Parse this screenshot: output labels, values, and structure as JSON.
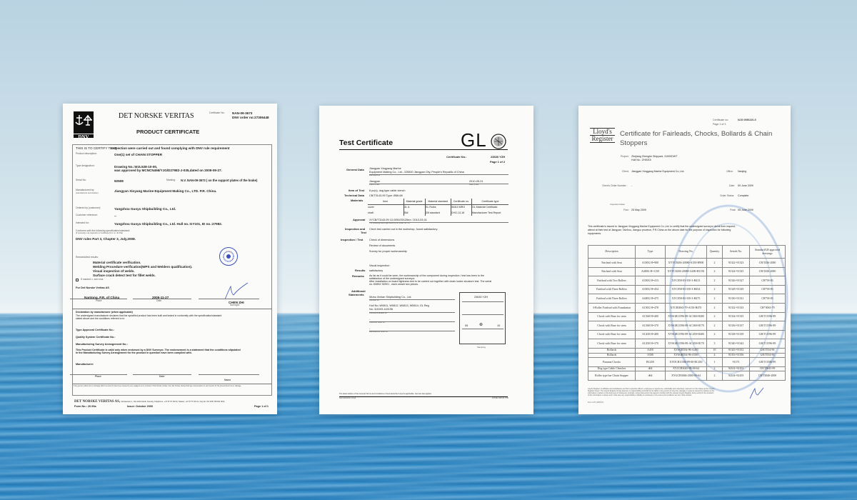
{
  "background": {
    "sky_color": "#cfe1ea",
    "sea_color": "#3f95c9"
  },
  "dnv": {
    "logo_text": "DNV",
    "org": "DET NORSKE VERITAS",
    "cert_label": "Certificate No:",
    "cert_no": "NAN-09-3673",
    "order_no": "DNV order no:27306448",
    "title": "PRODUCT CERTIFICATE",
    "certify_label": "THIS IS TO CERTIFY THAT:",
    "certify_value": "Inspection were carried out and found complying with DNV rule requirement",
    "product_label": "Product description:",
    "product_value": "One(1) set of CHAIN STOPPER",
    "type_label": "Type designation:",
    "type_value_1": "Drawing No.:WJL528-10-00,",
    "type_value_2": "was approved by MCNCN466/YJG/D27982-J-035,dated on 2009-09-27.",
    "serial_label": "Serial No:",
    "serial_value": "92508",
    "marking_label": "Marking:",
    "marking_value": "N.V. NAN-09-3673  ( on the support plates of the brake)",
    "manufactured_label": "Manufactured by:",
    "manufactured_sub": "(manufacturer and location)",
    "manufactured_value": "Jiangyan Xinyang Marine Equipment Making Co., LTD. P.R. China.",
    "ordered_label": "Ordered by (customer):",
    "ordered_value": "Yangzhou Guoyu Shipbuilding Co., Ltd.",
    "customer_ref_label": "Customer reference:",
    "customer_ref_value": "--",
    "intended_label": "Intended for:",
    "intended_value": "Yangzhou Guoyu Shipbuilding Co., Ltd. Hull no.:GY101, ID no.:27982.",
    "conforms_label": "Conforms with the following specification/standard:",
    "conforms_sub": "(if necessary use Appendix to Certificate form no. 40.93a)",
    "conforms_value": "DNV rules Part 3, Chapter 3, July,2008.",
    "remarks_label": "Remarks/test results:",
    "remarks": [
      "Material certificate verification.",
      "Welding Procedure verification(WPS and Welders qualification).",
      "Visual inspection of welds.",
      "Surface crack detect test for fillet welds."
    ],
    "if_marked": "If marked x, see encl.",
    "for_dnv": "For Det Norske Veritas AS",
    "place_value": "Nantong, P.R. of China",
    "place_label": "Place",
    "date_value": "2009-11-27",
    "date_label": "Date",
    "surveyor_name": "CHEN ZHI",
    "surveyor_label": "Surveyor",
    "seal_text": "DET NORSKE VERITAS 1864 SHANGHAI",
    "decl_title": "Declaration by manufacturer (when applicable)",
    "decl_text_1": "The undersigned manufacturer declares that the specified product has been built and tested in conformity with the specification/standard",
    "decl_text_2": "stated above and the conditions referred to in:",
    "type_approval": "Type Approval Certificate No.:",
    "quality_system": "Quality System Certificate No.:",
    "manufacturing_survey": "Manufacturing Survey Arrangement No.:",
    "validity_1": "This Product Certificate is valid only when endorsed by a DNV Surveyor. The endorsement is a statement that the conditions stipulated",
    "validity_2": "in the Manufacturing Survey Arrangement for the product in question have been complied with.",
    "manufacturer_label": "Manufacturer:",
    "place2": "Place",
    "date2": "Date",
    "name2": "Name",
    "footnote": "If any person suffers loss or damage which is proved to have been caused by any negligent act or omission of Det Norske Veritas, then Det Norske Veritas shall pay compensation to such person for his proved direct loss or damage.",
    "footer_org": "DET NORSKE VERITAS AS,",
    "footer_address": "Veritasveien 1, NO-1322 Høvik, Norway, Telephone: +47 67 57 99 00, Telefax: +47 67 57 99 11, Org.No. NO 945 748 931 MVA",
    "form_no": "Form No.: 20.93a",
    "issue": "Issue: October 2000",
    "page": "Page 1 of 1"
  },
  "gl": {
    "title": "Test Certificate",
    "logo": "GL",
    "cert_label": "Certificate No.:",
    "cert_no": "23630 YZH",
    "page": "Page 1 of 2",
    "general_label": "General Data",
    "general_1": "Jiangyan Xingyang Marine",
    "general_2": "Equipment Making Co., Ltd., 225500 Jiangyan City, People's Republic of China",
    "manufacturer_label": "Manufacturer",
    "place_value": "Jiangyan",
    "place_label": "Place of test",
    "date_value": "2010-05-21",
    "date_label": "Date of test",
    "item_label": "Item of Test",
    "item_value": "8 pc(s). dog type cable clench",
    "tech_label": "Technical Data",
    "tech_value": "CB/T3143-99 Type: Ø66-68",
    "materials_label": "Materials",
    "mat_headers": [
      "Item",
      "Material grade",
      "Material standard",
      "Certificate no.",
      "Certificate type"
    ],
    "mat_rows": [
      [
        "cover",
        "GL A",
        "GL Rules",
        "30410 MRG",
        "GL Material Certificate"
      ],
      [
        "shaft",
        "35#",
        "GB standard",
        "CHG-13-16",
        "Manufacturer Test Report"
      ]
    ],
    "approval_label": "Approval",
    "approval_value": "XYCB/T3143-99 10-0050/20125ez / 2010-03-01",
    "approval_note": "The drawings were approved by GL under ref. no.",
    "insp_test_label_1": "Inspection and",
    "insp_test_label_2": "Test",
    "insp_test_value": "Clech test carried out in the workshop, found satisfactory.",
    "insp_label": "Inspection / Test",
    "insp_items": [
      "Check of dimensions",
      "Review of documents",
      "Survey for proper workmanship",
      "Visual inspection"
    ],
    "results_label": "Results",
    "results_value": "satisfactory",
    "remarks_label": "Remarks",
    "remarks_1": "As far as it could be seen, the workmanship of the component during inspection / test has been to the",
    "remarks_2": "satisfaction of the undersigned surveyor.",
    "remarks_3": "After installation on board tightness test to be carried out together with chain locker structure test. The serial",
    "remarks_4": "no.:50894~50901 , each vessel two pieces.",
    "additional_label_1": "Additional",
    "additional_label_2": "Statements",
    "add_company": "Wuhu Xinlian Shipbuilding Co., Ltd.",
    "intended_label": "Intended for",
    "hull_1": "Hull No.:W0811, W0812, W0813, W0814; GL Reg",
    "hull_2": "No.:115193-115196",
    "continue_label": "Continue intended for",
    "dash1": "-",
    "customer_label": "Customer order no.",
    "dash2": "-",
    "mfr_order_label": "Manufacturer order no.",
    "stamp_no": "23630 YZH",
    "stamp_left": "05",
    "stamp_right": "10",
    "stamping_label": "Stamping",
    "footer_note": "The latest edition of the General Terms and Conditions of Germanischer Lloyd is applicable. German law applies.",
    "footer_org": "Germanischer Lloyd",
    "footer_form": "F/OSE/ 208.06 YFB"
  },
  "lr": {
    "cert_label": "Certificate no:",
    "cert_no": "NJG 0956220-5",
    "page": "Page 1 of 3",
    "logo_1": "Lloyd's",
    "logo_2": "Register",
    "title_1": "Certificate for Fairleads, Chocks, Bollards & Chain",
    "title_2": "Stoppers",
    "project_label": "Project:",
    "project_1": "Zhejiang Zhenghe Shipyard, 31000DWT",
    "project_2": "Hull No.: ZH0015",
    "client_label": "Client:",
    "client_value": "Jiangyan Xinggang Marine Equipment Co.,Ltd.",
    "office_label": "Office:",
    "office_value": "Nanjing",
    "order_label": "Client's Order Number:",
    "order_value": "-",
    "date_label": "Date:",
    "date_value": "09 June 2009",
    "status_label": "Order Status:",
    "status_value": "Complete",
    "insp_dates_label": "Inspection Dates",
    "first_label": "First:",
    "first_value": "25 May 2009",
    "final_label": "Final:",
    "final_value": "05 June 2009",
    "para_1": "This certificate is issued to Jiangyan Xinggang Marine Equipment Co.,Ltd. to certify that the undersigned surveyor did at their request,",
    "para_2": "attend at their test at Jiangyan, Taizhou, Jiangsu province, P.R.China on the above date for the purpose of inspection for following",
    "para_3": "equipments.",
    "headers": [
      "Description",
      "Type",
      "Drawing No.",
      "Quantity",
      "Serials No.",
      "Standard/LR approved drawings"
    ],
    "rows": [
      [
        "Fairlead with Seat",
        "A350G H=900",
        "XYYC8436-20080-A350-H900",
        "2",
        "91322~91323",
        "CB/T436-2000"
      ],
      [
        "Fairlead with Seat",
        "A400G H=1150",
        "XYYC8436-20080-A400-H1150",
        "2",
        "91324~91325",
        "CB/T436-2000"
      ],
      [
        "Fairlead with Two Rollers",
        "A350G H=413",
        "XYC858-83-350-3-H413",
        "2",
        "91326~91327",
        "CB*58-83"
      ],
      [
        "Fairlead with Three Rollers",
        "A350G H=454",
        "XYC858-83-350-3-H454",
        "2",
        "91328~91329",
        "CB*58-83"
      ],
      [
        "Fairlead with Three Rollers",
        "A400G H=475",
        "XYC858-83-350-3-H475",
        "2",
        "91330~91331",
        "CB*58-83"
      ],
      [
        "3-Roller Fairlead with Foundation",
        "A150G H=478",
        "XYCB3063-79-A150-H470",
        "2",
        "91332~91333",
        "CB*3063-79"
      ],
      [
        "Chock with Base for stem",
        "AC360 H=400",
        "XYSGB11596-89-AC360-H400",
        "2",
        "91334~91335",
        "GB/T11596-89"
      ],
      [
        "Chock with Base for stem",
        "AC360 H=370",
        "XYSGB11596-89-AC360-H170",
        "2",
        "91336~91337",
        "GB/T11596-89"
      ],
      [
        "Chock with Base for stem",
        "AC450 H=400",
        "XYSGB11596-89-AC450-H400",
        "2",
        "91338~91339",
        "GB/T11596-89"
      ],
      [
        "Chock with Base for stem",
        "AC450 H=370",
        "XYSGB11596-89-AC450-H170",
        "3",
        "91340~91342",
        "GB/T11596-89"
      ],
      [
        "Bollards",
        "A450",
        "XYSGB554-96-A450",
        "10",
        "91343~91352",
        "GB/T554-96"
      ],
      [
        "Bollards",
        "A500",
        "XYSGB554-96-A500",
        "4",
        "91353~91356",
        "GB/T554-96"
      ],
      [
        "Panama Chocks",
        "BC450",
        "XYDCB11586-89-00-BC450",
        "1",
        "91373",
        "GB/T11586-89"
      ],
      [
        "Dog type Cable Clenches",
        "d64",
        "XYCCB3045-99-00-64",
        "2",
        "92102~92103",
        "CB/T3045-99"
      ],
      [
        "Roller type bar Chain Stopper",
        "d64",
        "XYGCB3846-2000-00-64",
        "2",
        "92104~92105",
        "CB/T3846-2000"
      ]
    ],
    "footer_1": "Lloyd's Register, its affiliates and subsidiaries and their respective officers, employees or agents are, individually and collectively, referred to in this clause as the 'Lloyd's",
    "footer_2": "Register Group'. The Lloyd's Register Group assumes no responsibility and shall not be liable to any person for any loss, damage or expense caused by reliance on the",
    "footer_3": "information or advice in this document or howsoever provided, unless that person has signed a contract with the relevant Lloyd's Register Group entity for the provision",
    "footer_4": "of this information or advice and in that case any responsibility or liability is exclusively on the terms and conditions set out in that contract.",
    "form": "Form 1174 (2008.07)"
  }
}
